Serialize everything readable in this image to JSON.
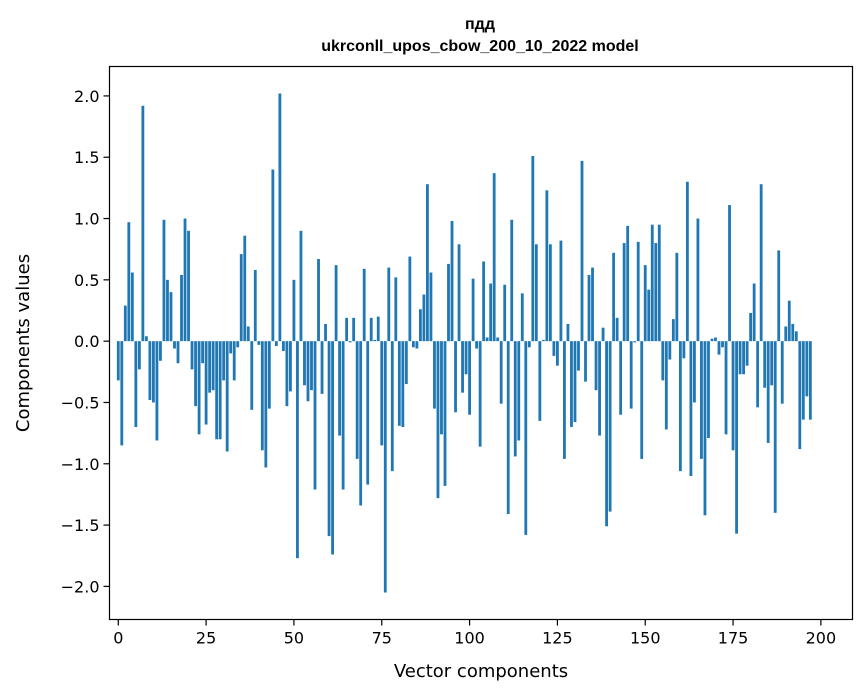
{
  "chart_data": {
    "type": "bar",
    "title_line1": "пдд",
    "title_line2": "ukrconll_upos_cbow_200_10_2022 model",
    "xlabel": "Vector components",
    "ylabel": "Components values",
    "xlim": [
      -2.5,
      209
    ],
    "ylim": [
      -2.27,
      2.24
    ],
    "xticks": [
      0,
      25,
      50,
      75,
      100,
      125,
      150,
      175,
      200
    ],
    "xtick_labels": [
      "0",
      "25",
      "50",
      "75",
      "100",
      "125",
      "150",
      "175",
      "200"
    ],
    "yticks": [
      2.0,
      1.5,
      1.0,
      0.5,
      0.0,
      -0.5,
      -1.0,
      -1.5,
      -2.0
    ],
    "ytick_labels": [
      "2.0",
      "1.5",
      "1.0",
      "0.5",
      "0.0",
      "−0.5",
      "−1.0",
      "−1.5",
      "−2.0"
    ],
    "bar_color": "#1f77b4",
    "grid": false,
    "legend": "none",
    "values": [
      -0.32,
      -0.85,
      0.29,
      0.97,
      0.56,
      -0.7,
      -0.23,
      1.92,
      0.04,
      -0.48,
      -0.5,
      -0.81,
      -0.16,
      0.99,
      0.5,
      0.4,
      -0.06,
      -0.18,
      0.54,
      1.0,
      0.9,
      -0.23,
      -0.53,
      -0.76,
      -0.18,
      -0.68,
      -0.42,
      -0.4,
      -0.8,
      -0.8,
      -0.32,
      -0.9,
      -0.1,
      -0.32,
      -0.05,
      0.71,
      0.86,
      0.12,
      -0.56,
      0.58,
      -0.03,
      -0.89,
      -1.03,
      -0.55,
      1.4,
      -0.04,
      2.02,
      -0.08,
      -0.53,
      -0.41,
      0.5,
      -1.77,
      0.9,
      -0.36,
      -0.49,
      -0.4,
      -1.21,
      0.67,
      -0.43,
      0.14,
      -1.59,
      -1.74,
      0.62,
      -0.77,
      -1.21,
      0.19,
      -0.01,
      0.19,
      -0.96,
      -1.34,
      0.59,
      -1.17,
      0.19,
      0.01,
      0.2,
      -0.85,
      -2.05,
      0.6,
      -1.06,
      0.52,
      -0.69,
      -0.7,
      -0.35,
      0.69,
      -0.05,
      -0.06,
      0.26,
      0.38,
      1.28,
      0.56,
      -0.55,
      -1.28,
      -0.76,
      -1.18,
      0.63,
      0.98,
      -0.58,
      0.79,
      -0.42,
      -0.27,
      -0.6,
      0.51,
      -0.06,
      -0.86,
      0.65,
      0.03,
      0.47,
      1.37,
      0.03,
      -0.51,
      0.46,
      -1.41,
      0.99,
      -0.94,
      -0.81,
      0.39,
      -1.58,
      -0.05,
      1.51,
      0.79,
      -0.65,
      0.01,
      1.23,
      0.79,
      -0.12,
      -0.2,
      0.82,
      -0.96,
      0.14,
      -0.7,
      -0.66,
      -0.24,
      1.47,
      -0.33,
      0.54,
      0.6,
      -0.4,
      -0.77,
      0.11,
      -1.51,
      -1.39,
      0.72,
      0.19,
      -0.6,
      0.8,
      0.94,
      -0.55,
      -0.01,
      0.81,
      -0.96,
      0.62,
      0.42,
      0.95,
      0.8,
      0.95,
      -0.32,
      -0.72,
      -0.15,
      0.18,
      0.72,
      -1.06,
      -0.14,
      1.3,
      -1.1,
      -0.5,
      1.0,
      -0.96,
      -1.42,
      -0.79,
      0.02,
      0.03,
      -0.11,
      -0.05,
      -0.76,
      1.11,
      -0.89,
      -1.57,
      -0.27,
      -0.27,
      -0.2,
      0.23,
      0.47,
      -0.54,
      1.28,
      -0.38,
      -0.83,
      -0.36,
      -1.4,
      0.74,
      -0.51,
      0.12,
      0.33,
      0.14,
      0.08,
      -0.88,
      -0.64,
      -0.45,
      -0.64
    ]
  }
}
